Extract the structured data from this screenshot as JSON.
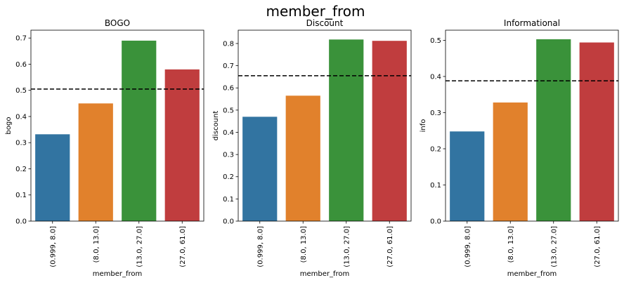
{
  "suptitle": "member_from",
  "chart_data": [
    {
      "type": "bar",
      "title": "BOGO",
      "xlabel": "member_from",
      "ylabel": "bogo",
      "categories": [
        "(0.999, 8.0]",
        "(8.0, 13.0]",
        "(13.0, 27.0]",
        "(27.0, 61.0]"
      ],
      "values": [
        0.332,
        0.45,
        0.69,
        0.58
      ],
      "colors": [
        "#3274a1",
        "#e1812c",
        "#3a923a",
        "#c03d3e"
      ],
      "reference_line": 0.505,
      "ylim": [
        0,
        0.73
      ],
      "yticks": [
        0.0,
        0.1,
        0.2,
        0.3,
        0.4,
        0.5,
        0.6,
        0.7
      ],
      "ytick_labels": [
        "0.0",
        "0.1",
        "0.2",
        "0.3",
        "0.4",
        "0.5",
        "0.6",
        "0.7"
      ]
    },
    {
      "type": "bar",
      "title": "Discount",
      "xlabel": "member_from",
      "ylabel": "discount",
      "categories": [
        "(0.999, 8.0]",
        "(8.0, 13.0]",
        "(13.0, 27.0]",
        "(27.0, 61.0]"
      ],
      "values": [
        0.47,
        0.565,
        0.818,
        0.812
      ],
      "colors": [
        "#3274a1",
        "#e1812c",
        "#3a923a",
        "#c03d3e"
      ],
      "reference_line": 0.655,
      "ylim": [
        0,
        0.86
      ],
      "yticks": [
        0.0,
        0.1,
        0.2,
        0.3,
        0.4,
        0.5,
        0.6,
        0.7,
        0.8
      ],
      "ytick_labels": [
        "0.0",
        "0.1",
        "0.2",
        "0.3",
        "0.4",
        "0.5",
        "0.6",
        "0.7",
        "0.8"
      ]
    },
    {
      "type": "bar",
      "title": "Informational",
      "xlabel": "member_from",
      "ylabel": "info",
      "categories": [
        "(0.999, 8.0]",
        "(8.0, 13.0]",
        "(13.0, 27.0]",
        "(27.0, 61.0]"
      ],
      "values": [
        0.248,
        0.328,
        0.503,
        0.494
      ],
      "colors": [
        "#3274a1",
        "#e1812c",
        "#3a923a",
        "#c03d3e"
      ],
      "reference_line": 0.388,
      "ylim": [
        0,
        0.528
      ],
      "yticks": [
        0.0,
        0.1,
        0.2,
        0.3,
        0.4,
        0.5
      ],
      "ytick_labels": [
        "0.0",
        "0.1",
        "0.2",
        "0.3",
        "0.4",
        "0.5"
      ]
    }
  ]
}
